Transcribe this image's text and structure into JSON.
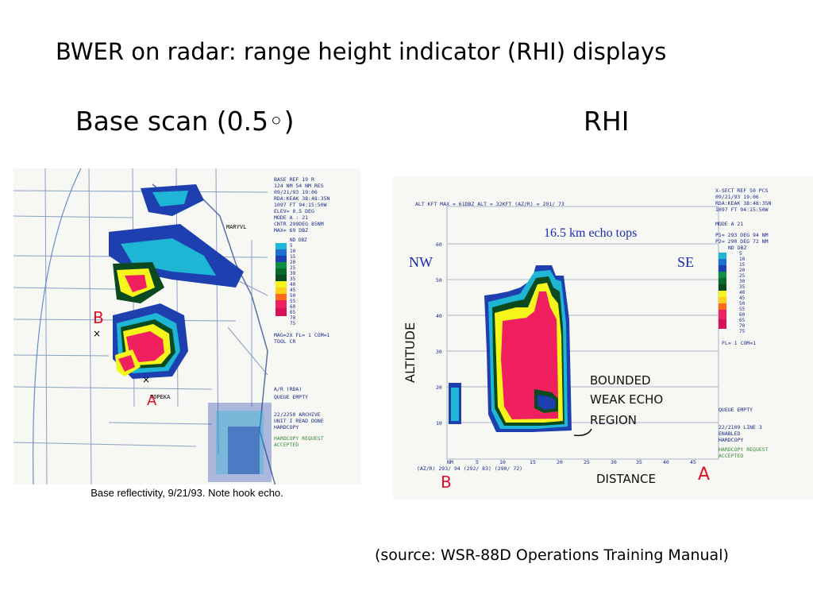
{
  "slide": {
    "title": "BWER on radar: range height indicator (RHI) displays",
    "left_subtitle": "Base scan (0.5◦)",
    "right_subtitle": "RHI",
    "source": "(source: WSR-88D Operations Training Manual)"
  },
  "left_image": {
    "caption": "Base reflectivity, 9/21/93. Note hook echo.",
    "header_lines": [
      "BASE REF   19 R",
      "124 NM   54 NM RES",
      "09/21/93 19:06",
      "RDA:KEAK 38:48:35N",
      "1097 FT  94:15:50W",
      "ELEV=  0.5 DEG",
      "MODE A  :  21",
      "CNTR 299DEG  85NM",
      "MAX= 69 DBZ"
    ],
    "scale_labels": [
      "ND DBZ",
      "5",
      "10",
      "15",
      "20",
      "25",
      "30",
      "35",
      "40",
      "45",
      "50",
      "55",
      "60",
      "65",
      "70",
      "75"
    ],
    "scale_colors": [
      "#9aa0a6",
      "#1fb6d6",
      "#1a6fd0",
      "#1e3fb0",
      "#0f8f3f",
      "#0a6a2e",
      "#0b4a1e",
      "#f5f51c",
      "#ffcf1a",
      "#ff6a1a",
      "#f02060",
      "#d8105a"
    ],
    "status_lines": [
      "MAG=2X FL= 1 COM=1",
      "TOOL CR",
      "A/R (RDA)",
      "QUEUE EMPTY",
      "22/2250 ARCHIVE",
      "UNIT I READ DONE",
      "HARDCOPY",
      "HARDCOPY REQUEST",
      "ACCEPTED"
    ],
    "place_labels": [
      "MARYVL",
      "TOPEKA"
    ],
    "point_labels": [
      "B",
      "A"
    ]
  },
  "right_image": {
    "header_line": "ALT KFT    MAX =  61DBZ    ALT = 32KFT   (AZ/R) = 291/ 73",
    "echo_tops_label": "16.5 km echo tops",
    "left_dir": "NW",
    "right_dir": "SE",
    "altitude_label": "ALTITUDE",
    "distance_label": "DISTANCE",
    "bwer_label": [
      "BOUNDED",
      "WEAK ECHO",
      "REGION"
    ],
    "y_ticks": [
      "60",
      "50",
      "40",
      "30",
      "20",
      "10"
    ],
    "x_ticks": [
      "NM",
      "5",
      "10",
      "15",
      "20",
      "25",
      "30",
      "35",
      "40",
      "45"
    ],
    "x_axis_caption": "(AZ/R) 293/ 94 (292/ 83) (290/ 72)",
    "point_labels": [
      "B",
      "A"
    ],
    "header_lines": [
      "X-SECT REF 50 PCS",
      "09/21/93 19:06",
      "RDA:KEAK 38:48:35N",
      "1097 FT  94:15:50W",
      "MODE A    21",
      "P1= 293 DEG  94 NM",
      "P2= 290 DEG  72 NM",
      "ND DBZ"
    ],
    "scale_labels": [
      "5",
      "10",
      "15",
      "20",
      "25",
      "30",
      "35",
      "40",
      "45",
      "50",
      "55",
      "60",
      "65",
      "70",
      "75"
    ],
    "status_lines": [
      "FL= 1 COM=1",
      "QUEUE EMPTY",
      "22/2109 LINE 3",
      "ENABLED",
      "HARDCOPY",
      "HARDCOPY REQUEST",
      "ACCEPTED"
    ]
  }
}
